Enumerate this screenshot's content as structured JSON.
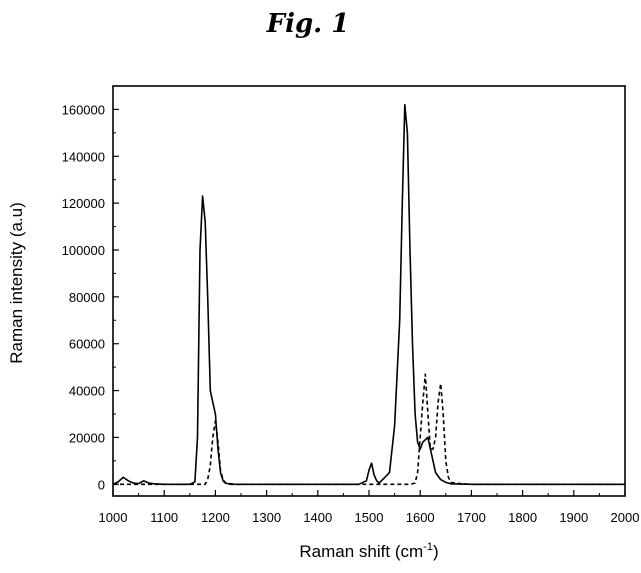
{
  "chart_data": {
    "type": "line",
    "title": "Fig. 1",
    "xlabel": "Raman shift",
    "xlabel_unit": "cm",
    "xlabel_unit_sup": "-1",
    "ylabel": "Raman intensity (a.u)",
    "xlim": [
      1000,
      2000
    ],
    "ylim": [
      -5000,
      170000
    ],
    "x_ticks": [
      1000,
      1100,
      1200,
      1300,
      1400,
      1500,
      1600,
      1700,
      1800,
      1900,
      2000
    ],
    "x_tick_labels": [
      "1000",
      "1100",
      "1200",
      "1300",
      "1400",
      "1500",
      "1600",
      "1700",
      "1800",
      "1900",
      "2000"
    ],
    "y_ticks": [
      0,
      20000,
      40000,
      60000,
      80000,
      100000,
      120000,
      140000,
      160000
    ],
    "y_tick_labels": [
      "0",
      "20000",
      "40000",
      "60000",
      "80000",
      "100000",
      "120000",
      "140000",
      "160000"
    ],
    "grid": false,
    "series": [
      {
        "style": "solid",
        "color": "#000000",
        "x": [
          1000,
          1010,
          1020,
          1030,
          1040,
          1050,
          1060,
          1070,
          1080,
          1100,
          1150,
          1160,
          1165,
          1170,
          1175,
          1180,
          1185,
          1190,
          1195,
          1200,
          1205,
          1210,
          1215,
          1220,
          1230,
          1300,
          1400,
          1480,
          1495,
          1500,
          1505,
          1510,
          1515,
          1520,
          1540,
          1550,
          1560,
          1565,
          1570,
          1575,
          1580,
          1585,
          1590,
          1595,
          1600,
          1605,
          1610,
          1615,
          1620,
          1625,
          1630,
          1640,
          1650,
          1660,
          1700,
          1800,
          1900,
          2000
        ],
        "y": [
          0,
          1000,
          3000,
          1500,
          500,
          300,
          1500,
          500,
          200,
          0,
          0,
          1000,
          20000,
          100000,
          123000,
          112000,
          80000,
          40000,
          35000,
          30000,
          15000,
          5000,
          1500,
          500,
          0,
          0,
          0,
          0,
          1500,
          6000,
          9000,
          4000,
          1500,
          500,
          5000,
          25000,
          70000,
          120000,
          162000,
          150000,
          100000,
          60000,
          30000,
          18000,
          15000,
          18000,
          19000,
          20000,
          15000,
          10000,
          5000,
          2000,
          800,
          200,
          0,
          0,
          0,
          0
        ]
      },
      {
        "style": "dashed",
        "color": "#000000",
        "x": [
          1000,
          1150,
          1170,
          1180,
          1185,
          1190,
          1195,
          1200,
          1205,
          1210,
          1215,
          1220,
          1240,
          1300,
          1400,
          1500,
          1580,
          1590,
          1595,
          1600,
          1605,
          1610,
          1615,
          1620,
          1625,
          1630,
          1635,
          1640,
          1645,
          1650,
          1655,
          1660,
          1680,
          1700,
          1800,
          2000
        ],
        "y": [
          0,
          0,
          0,
          0,
          2000,
          8000,
          20000,
          27000,
          18000,
          6000,
          2000,
          500,
          0,
          0,
          0,
          0,
          0,
          500,
          5000,
          20000,
          35000,
          47000,
          30000,
          15000,
          15000,
          20000,
          35000,
          43000,
          30000,
          10000,
          3000,
          800,
          200,
          0,
          0,
          0
        ]
      }
    ]
  }
}
